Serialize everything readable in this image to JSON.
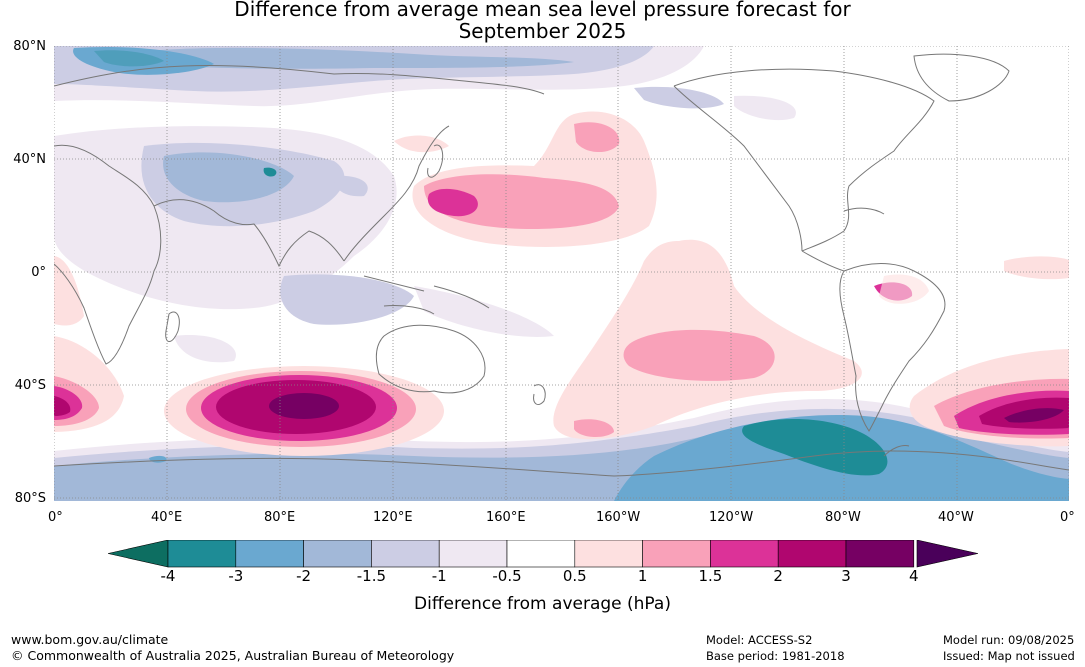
{
  "title_line1": "Difference from average mean sea level pressure forecast for",
  "title_line2": "September 2025",
  "lat_labels": [
    "80°N",
    "40°N",
    "0°",
    "40°S",
    "80°S"
  ],
  "lon_labels": [
    "0°",
    "40°E",
    "80°E",
    "120°E",
    "160°E",
    "160°W",
    "120°W",
    "80°W",
    "40°W",
    "0°"
  ],
  "colorbar": {
    "title": "Difference from average (hPa)",
    "tick_labels": [
      "-4",
      "-3",
      "-2",
      "-1.5",
      "-1",
      "-0.5",
      "0.5",
      "1",
      "1.5",
      "2",
      "3",
      "4"
    ],
    "colors": {
      "below_min": "#0d6e61",
      "bins": [
        "#1e8c96",
        "#6aa8d0",
        "#a2b8d8",
        "#cccde4",
        "#efe8f2",
        "#ffffff",
        "#fde0e0",
        "#f9a1b9",
        "#dc3298",
        "#b0066f",
        "#760063"
      ],
      "above_max": "#4a005a"
    }
  },
  "map": {
    "land_color": "#777777",
    "grid": "dotted"
  },
  "footer": {
    "url": "www.bom.gov.au/climate",
    "copyright": "© Commonwealth of Australia 2025, Australian Bureau of Meteorology",
    "model": "Model: ACCESS-S2",
    "base_period": "Base period: 1981-2018",
    "model_run": "Model run: 09/08/2025",
    "issued": "Issued: Map not issued"
  }
}
